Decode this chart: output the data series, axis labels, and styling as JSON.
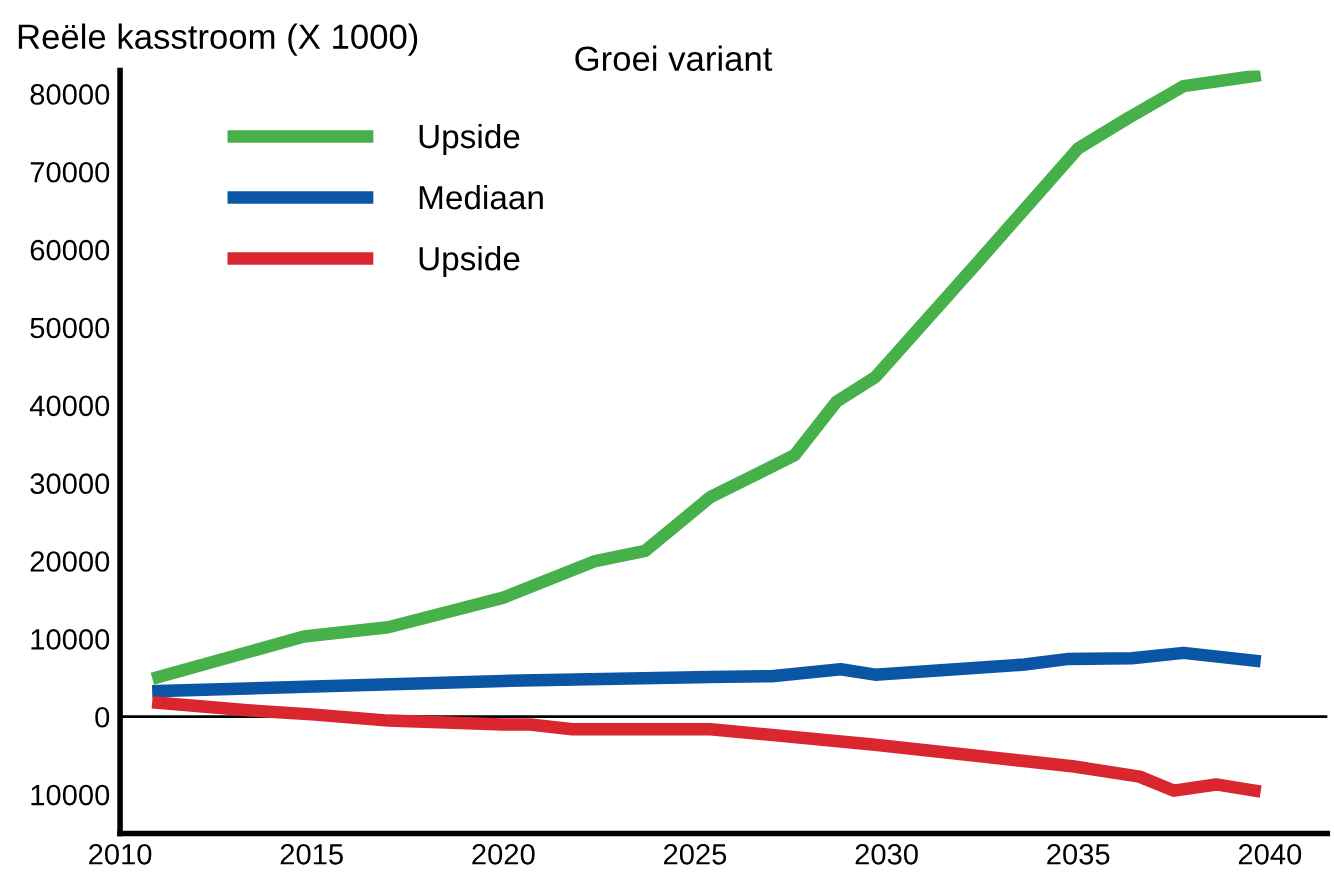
{
  "chart_data": {
    "type": "line",
    "title": "Groei variant",
    "ylabel": "Reële kasstroom (X 1000)",
    "xlim": [
      2010,
      2041.5
    ],
    "xticks": [
      2010,
      2015,
      2020,
      2025,
      2030,
      2035,
      2040
    ],
    "ylim": [
      -15000,
      83000
    ],
    "yticks": [
      {
        "value": -10000,
        "label": "10000"
      },
      0,
      10000,
      20000,
      30000,
      40000,
      50000,
      60000,
      70000,
      80000
    ],
    "ref_lines": [
      {
        "axis": "y",
        "value": 0,
        "color": "#000000"
      }
    ],
    "grid": false,
    "legend": "top left",
    "marker": "none",
    "line_style": "solid",
    "series": [
      {
        "name": "Upside",
        "color": "#46b04a",
        "x": [
          2011,
          2014.8,
          2017,
          2020,
          2022.4,
          2023.7,
          2025.4,
          2027.6,
          2028.7,
          2029.7,
          2032.4,
          2035,
          2036.3,
          2037.75,
          2039.6
        ],
        "values": [
          5100,
          10300,
          11500,
          15300,
          20000,
          21300,
          28200,
          33600,
          40500,
          43600,
          58500,
          73000,
          76900,
          81000,
          82300
        ]
      },
      {
        "name": "Mediaan",
        "color": "#0a56a4",
        "x": [
          2011,
          2020,
          2025.4,
          2027,
          2028.8,
          2029.7,
          2033.6,
          2034.7,
          2036.4,
          2037.75,
          2039.6
        ],
        "values": [
          3300,
          4600,
          5100,
          5200,
          6100,
          5400,
          6700,
          7400,
          7500,
          8200,
          7200
        ]
      },
      {
        "name": "Upside",
        "color": "#d9262f",
        "x": [
          2011,
          2013.4,
          2015,
          2017,
          2020,
          2020.7,
          2021.8,
          2025.4,
          2029.7,
          2034.9,
          2036.6,
          2037.5,
          2038.6,
          2039.6
        ],
        "values": [
          1800,
          800,
          300,
          -500,
          -1000,
          -1000,
          -1600,
          -1600,
          -3600,
          -6400,
          -7700,
          -9500,
          -8700,
          -9500
        ]
      }
    ]
  }
}
